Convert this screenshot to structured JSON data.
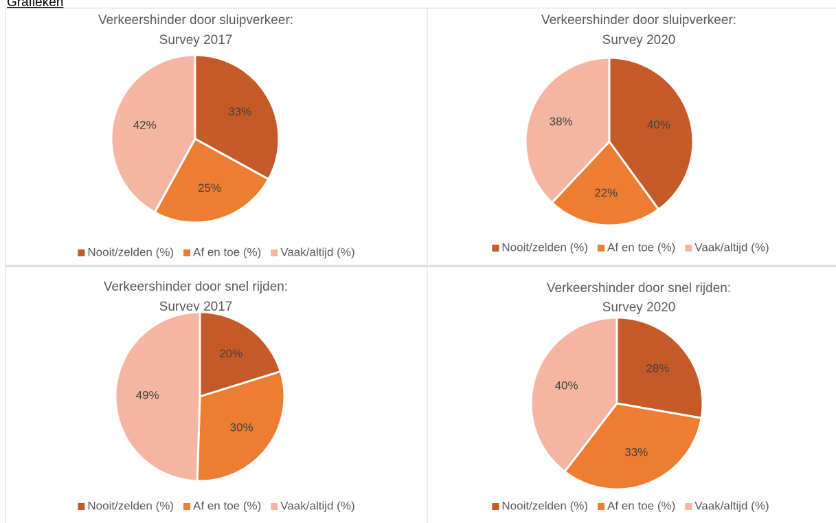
{
  "heading": "Grafieken",
  "chart_data": [
    {
      "type": "pie",
      "title": "Verkeershinder door sluipverkeer:",
      "subtitle": "Survey 2017",
      "categories": [
        "Nooit/zelden (%)",
        "Af en toe (%)",
        "Vaak/altijd (%)"
      ],
      "values": [
        33,
        25,
        42
      ],
      "value_labels": [
        "33%",
        "25%",
        "42%"
      ],
      "colors": [
        "#c55a28",
        "#ed7d31",
        "#f4b6a2"
      ]
    },
    {
      "type": "pie",
      "title": "Verkeershinder door sluipverkeer:",
      "subtitle": "Survey 2020",
      "categories": [
        "Nooit/zelden (%)",
        "Af en toe (%)",
        "Vaak/altijd (%)"
      ],
      "values": [
        40,
        22,
        38
      ],
      "value_labels": [
        "40%",
        "22%",
        "38%"
      ],
      "colors": [
        "#c55a28",
        "#ed7d31",
        "#f4b6a2"
      ]
    },
    {
      "type": "pie",
      "title": "Verkeershinder door snel rijden:",
      "subtitle": "Survey 2017",
      "categories": [
        "Nooit/zelden (%)",
        "Af en toe (%)",
        "Vaak/altijd (%)"
      ],
      "values": [
        20,
        30,
        49
      ],
      "value_labels": [
        "20%",
        "30%",
        "49%"
      ],
      "colors": [
        "#c55a28",
        "#ed7d31",
        "#f4b6a2"
      ]
    },
    {
      "type": "pie",
      "title": "Verkeershinder door snel rijden:",
      "subtitle": "Survey 2020",
      "categories": [
        "Nooit/zelden (%)",
        "Af en toe (%)",
        "Vaak/altijd (%)"
      ],
      "values": [
        28,
        33,
        40
      ],
      "value_labels": [
        "28%",
        "33%",
        "40%"
      ],
      "colors": [
        "#c55a28",
        "#ed7d31",
        "#f4b6a2"
      ]
    }
  ]
}
